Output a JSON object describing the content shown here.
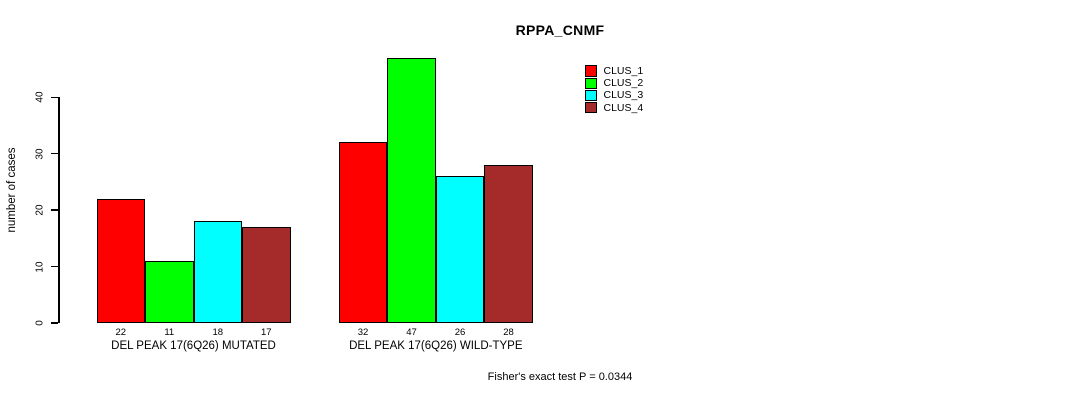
{
  "page": {
    "background_color": "#ffffff",
    "text_color": "#000000",
    "axis_color": "#000000"
  },
  "chart_data": {
    "type": "bar",
    "title": "RPPA_CNMF",
    "xlabel": "",
    "ylabel": "number of cases",
    "yticks": [
      0,
      10,
      20,
      30,
      40
    ],
    "ylim": [
      0,
      47
    ],
    "grid": false,
    "legend_position": "top-right-outside",
    "categories": [
      "DEL PEAK 17(6Q26) MUTATED",
      "DEL PEAK 17(6Q26) WILD-TYPE"
    ],
    "series": [
      {
        "name": "CLUS_1",
        "color": "#ff0000",
        "values": [
          22,
          32
        ]
      },
      {
        "name": "CLUS_2",
        "color": "#00ff00",
        "values": [
          11,
          47
        ]
      },
      {
        "name": "CLUS_3",
        "color": "#00ffff",
        "values": [
          18,
          26
        ]
      },
      {
        "name": "CLUS_4",
        "color": "#a52a2a",
        "values": [
          17,
          28
        ]
      }
    ],
    "bar_value_labels": [
      [
        22,
        11,
        18,
        17
      ],
      [
        32,
        47,
        26,
        28
      ]
    ],
    "annotation": "Fisher's exact test P = 0.0344"
  }
}
